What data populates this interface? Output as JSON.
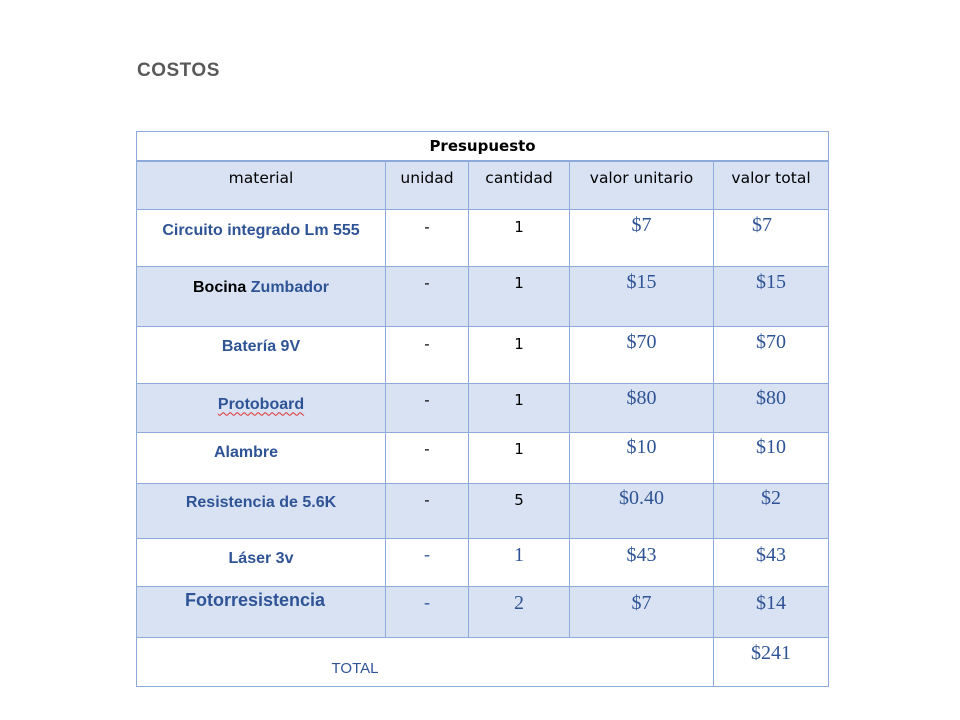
{
  "heading": "COSTOS",
  "table": {
    "caption": "Presupuesto",
    "headers": [
      "material",
      "unidad",
      "cantidad",
      "valor unitario",
      "valor total"
    ],
    "rows": [
      {
        "material_a": "Circuito integrado Lm 555",
        "material_b": "",
        "unidad": "-",
        "cantidad": "1",
        "valor_unitario": "$7",
        "valor_total": "$7"
      },
      {
        "material_a": "Bocina",
        "material_b": "Zumbador",
        "unidad": "-",
        "cantidad": "1",
        "valor_unitario": "$15",
        "valor_total": "$15"
      },
      {
        "material_a": "Batería 9V",
        "material_b": "",
        "unidad": "-",
        "cantidad": "1",
        "valor_unitario": "$70",
        "valor_total": "$70"
      },
      {
        "material_a": "Protoboard",
        "material_b": "",
        "unidad": "-",
        "cantidad": "1",
        "valor_unitario": "$80",
        "valor_total": "$80"
      },
      {
        "material_a": "Alambre",
        "material_b": "",
        "unidad": "-",
        "cantidad": "1",
        "valor_unitario": "$10",
        "valor_total": "$10"
      },
      {
        "material_a": "Resistencia de 5.6K",
        "material_b": "",
        "unidad": "-",
        "cantidad": "5",
        "valor_unitario": "$0.40",
        "valor_total": "$2"
      },
      {
        "material_a": "Láser 3v",
        "material_b": "",
        "unidad": "-",
        "cantidad": "1",
        "valor_unitario": "$43",
        "valor_total": "$43"
      },
      {
        "material_a": "Fotorresistencia",
        "material_b": "",
        "unidad": "-",
        "cantidad": "2",
        "valor_unitario": "$7",
        "valor_total": "$14"
      }
    ],
    "total_label": "TOTAL",
    "total_value": "$241"
  },
  "colors": {
    "border": "#8eaadb",
    "shade": "#d9e2f3",
    "text_blue": "#2f5496",
    "heading_gray": "#595959",
    "spell_underline": "#e03030"
  }
}
